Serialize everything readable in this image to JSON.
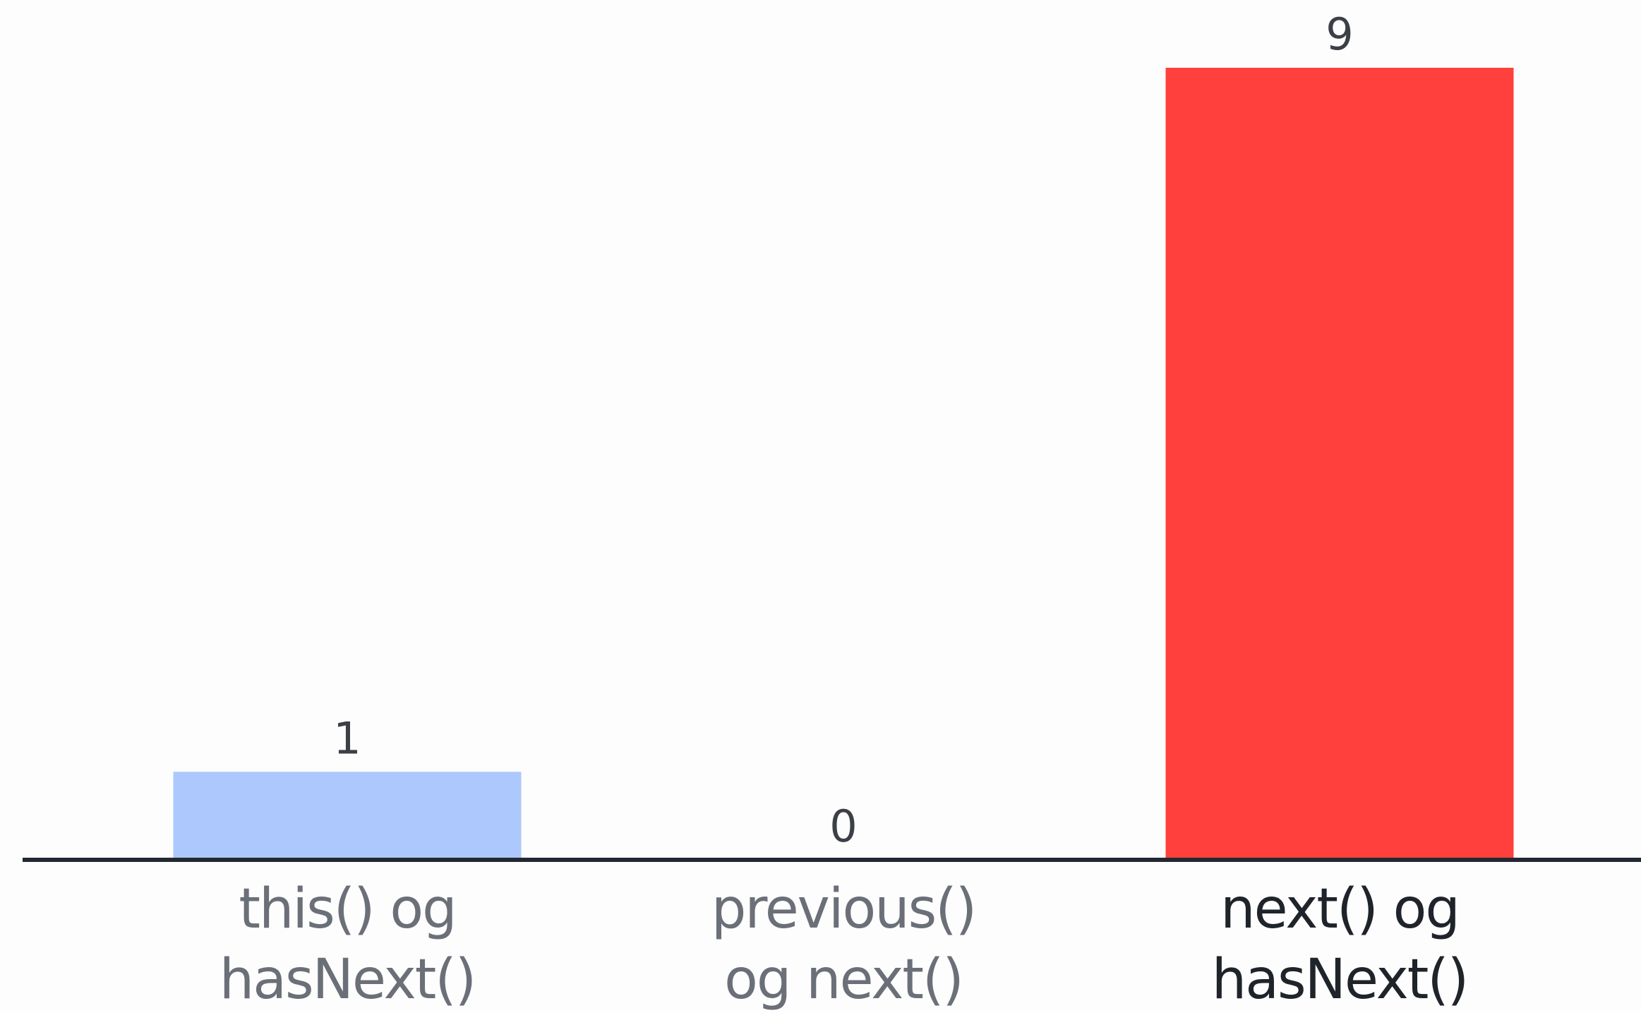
{
  "chart_data": {
    "type": "bar",
    "categories": [
      [
        "this() og",
        "hasNext()"
      ],
      [
        "previous()",
        "og next()"
      ],
      [
        "next() og",
        "hasNext()"
      ]
    ],
    "values": [
      1,
      0,
      9
    ],
    "data_labels": [
      "1",
      "0",
      "9"
    ],
    "colors": [
      "#adc8fd",
      "#adc8fd",
      "#ff403d"
    ],
    "highlighted_index": 2,
    "title": "",
    "xlabel": "",
    "ylabel": "",
    "ylim": [
      0,
      9
    ],
    "grid": false,
    "axis_color": "#222831",
    "label_color_default": "#6b6f78",
    "label_color_highlight": "#1f232a"
  }
}
